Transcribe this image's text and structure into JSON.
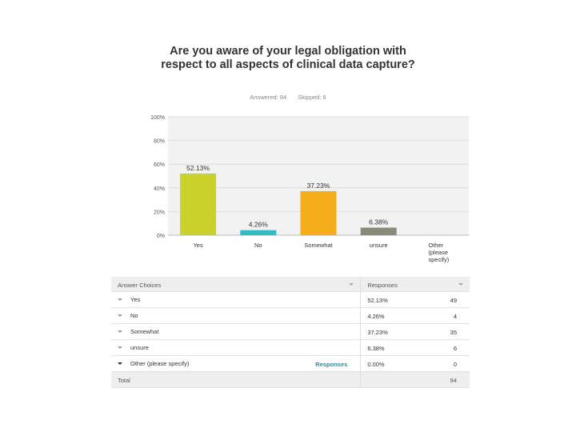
{
  "question": {
    "title": "Are you aware of your legal obligation with respect to all aspects of clinical data capture?",
    "answered": "Answered: 94",
    "skipped": "Skipped: 6"
  },
  "chart_data": {
    "type": "bar",
    "categories": [
      "Yes",
      "No",
      "Somewhat",
      "unsure",
      "Other (please specify)"
    ],
    "values": [
      52.13,
      4.26,
      37.23,
      6.38,
      0
    ],
    "data_labels": [
      "52.13%",
      "4.26%",
      "37.23%",
      "6.38%",
      ""
    ],
    "bar_colors": [
      "#c9d12a",
      "#2fbcc6",
      "#f5ad1c",
      "#8a8a7a",
      "#cccccc"
    ],
    "yticks": [
      "0%",
      "20%",
      "40%",
      "60%",
      "80%",
      "100%"
    ],
    "ylim": [
      0,
      100
    ],
    "grid": true
  },
  "table": {
    "header_choice": "Answer Choices",
    "header_responses": "Responses",
    "rows": [
      {
        "choice": "Yes",
        "pct": "52.13%",
        "count": "49"
      },
      {
        "choice": "No",
        "pct": "4.26%",
        "count": "4"
      },
      {
        "choice": "Somewhat",
        "pct": "37.23%",
        "count": "35"
      },
      {
        "choice": "unsure",
        "pct": "6.38%",
        "count": "6"
      },
      {
        "choice": "Other (please specify)",
        "pct": "0.00%",
        "count": "0",
        "link": "Responses"
      }
    ],
    "total_label": "Total",
    "total_count": "94"
  }
}
